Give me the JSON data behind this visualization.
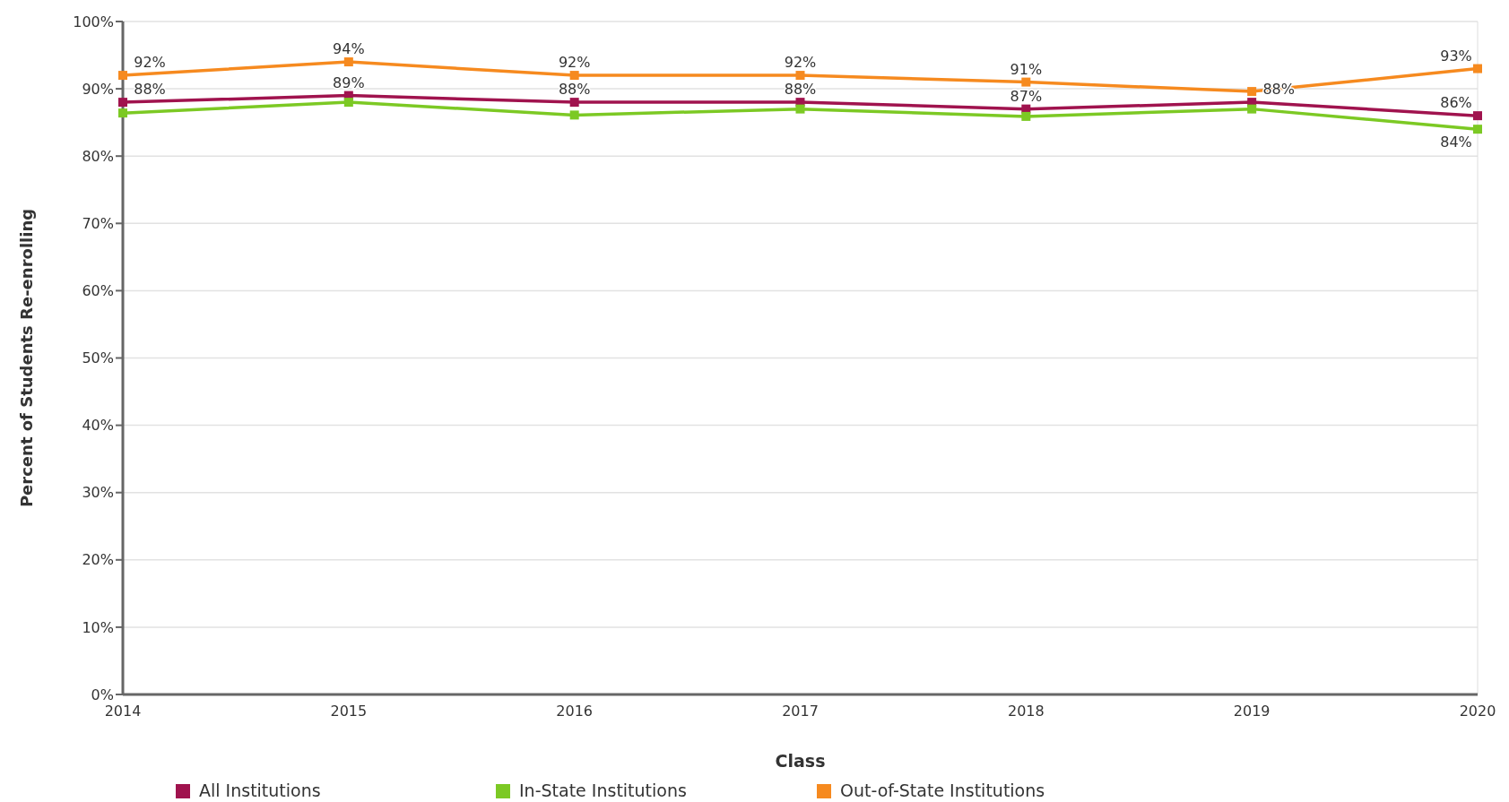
{
  "chart_data": {
    "type": "line",
    "xlabel": "Class",
    "ylabel": "Percent of Students Re-enrolling",
    "x": [
      2014,
      2015,
      2016,
      2017,
      2018,
      2019,
      2020
    ],
    "xlim": [
      2014,
      2020
    ],
    "xticks": [
      2014,
      2015,
      2016,
      2017,
      2018,
      2019,
      2020
    ],
    "ylim": [
      0,
      100
    ],
    "yticks": [
      {
        "value": 0,
        "label": "0%"
      },
      {
        "value": 10,
        "label": "10%"
      },
      {
        "value": 20,
        "label": "20%"
      },
      {
        "value": 30,
        "label": "30%"
      },
      {
        "value": 40,
        "label": "40%"
      },
      {
        "value": 50,
        "label": "50%"
      },
      {
        "value": 60,
        "label": "60%"
      },
      {
        "value": 70,
        "label": "70%"
      },
      {
        "value": 80,
        "label": "80%"
      },
      {
        "value": 90,
        "label": "90%"
      },
      {
        "value": 100,
        "label": "100%"
      }
    ],
    "grid": "y",
    "legend": "bottom",
    "marker": "square",
    "series": [
      {
        "name": "All Institutions",
        "color": "#a0134e",
        "values": [
          88,
          89,
          88,
          88,
          87,
          88,
          86
        ],
        "value_labels": [
          "88%",
          "89%",
          "88%",
          "88%",
          "87%",
          "88%",
          "86%"
        ]
      },
      {
        "name": "In-State Institutions",
        "color": "#7cc924",
        "values": [
          86.4,
          88,
          86.1,
          87,
          85.9,
          87,
          84
        ],
        "value_labels": [
          null,
          null,
          null,
          null,
          null,
          null,
          "84%"
        ]
      },
      {
        "name": "Out-of-State Institutions",
        "color": "#f68a1f",
        "values": [
          92,
          94,
          92,
          92,
          91,
          89.6,
          93
        ],
        "value_labels": [
          "92%",
          "94%",
          "92%",
          "92%",
          "91%",
          null,
          "93%"
        ]
      }
    ]
  }
}
